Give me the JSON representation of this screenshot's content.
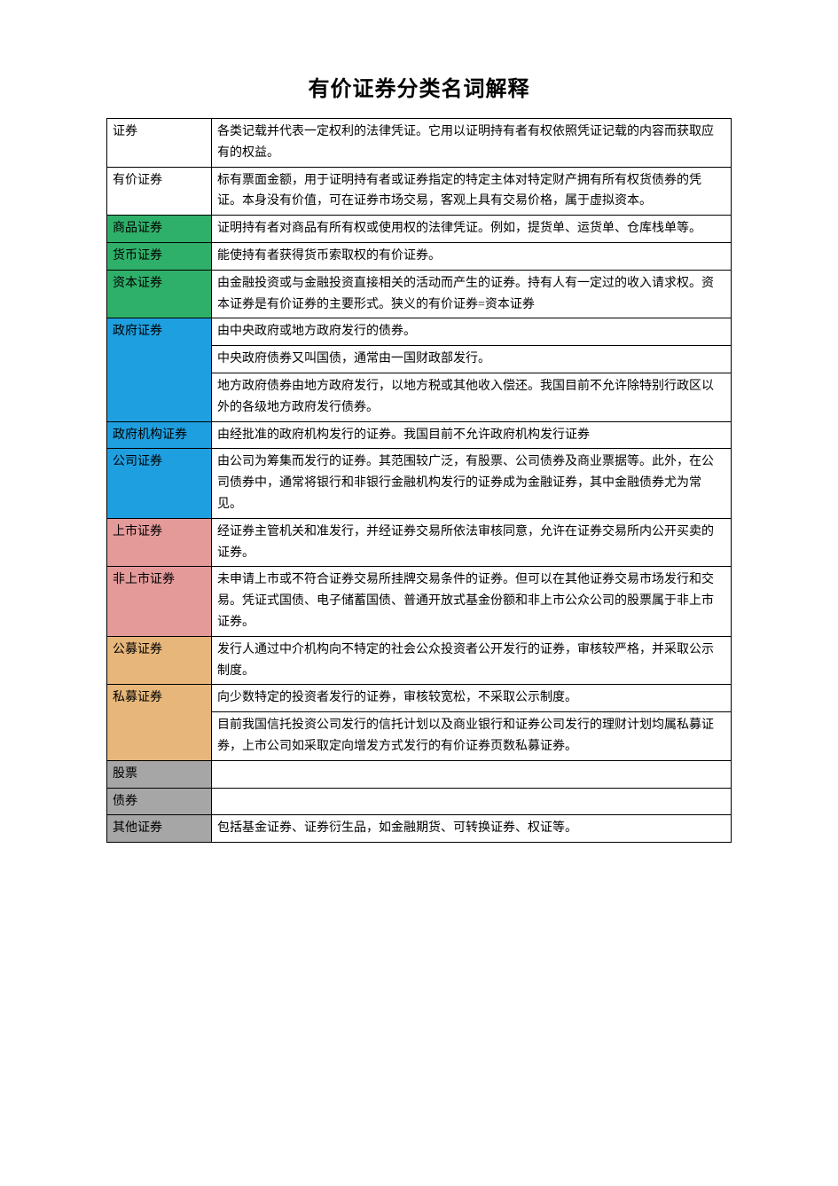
{
  "title": "有价证券分类名词解释",
  "table": {
    "columns": [
      "term",
      "definition"
    ],
    "col_widths": [
      "118px",
      "auto"
    ],
    "border_color": "#000000",
    "font_size": 14,
    "line_height": 1.7,
    "rows": [
      {
        "term": "证券",
        "term_bg": "#ffffff",
        "definition": "各类记载并代表一定权利的法律凭证。它用以证明持有者有权依照凭证记载的内容而获取应有的权益。"
      },
      {
        "term": "有价证券",
        "term_bg": "#ffffff",
        "definition": "标有票面金额，用于证明持有者或证券指定的特定主体对特定财产拥有所有权货债券的凭证。本身没有价值，可在证券市场交易，客观上具有交易价格，属于虚拟资本。"
      },
      {
        "term": "商品证券",
        "term_bg": "#2fb06a",
        "definition": "证明持有者对商品有所有权或使用权的法律凭证。例如，提货单、运货单、仓库栈单等。"
      },
      {
        "term": "货币证券",
        "term_bg": "#2fb06a",
        "definition": "能使持有者获得货币索取权的有价证券。"
      },
      {
        "term": "资本证券",
        "term_bg": "#2fb06a",
        "definition": "由金融投资或与金融投资直接相关的活动而产生的证券。持有人有一定过的收入请求权。资本证券是有价证券的主要形式。狭义的有价证券=资本证券"
      },
      {
        "term": "政府证券",
        "term_bg": "#1e9fe0",
        "term_rowspan": 3,
        "definition": "由中央政府或地方政府发行的债券。"
      },
      {
        "continuation": true,
        "definition": "中央政府债券又叫国债，通常由一国财政部发行。"
      },
      {
        "continuation": true,
        "definition": "地方政府债券由地方政府发行，以地方税或其他收入偿还。我国目前不允许除特别行政区以外的各级地方政府发行债券。"
      },
      {
        "term": "政府机构证券",
        "term_bg": "#1e9fe0",
        "definition": "由经批准的政府机构发行的证券。我国目前不允许政府机构发行证券"
      },
      {
        "term": "公司证券",
        "term_bg": "#1e9fe0",
        "definition": "由公司为筹集而发行的证券。其范围较广泛，有股票、公司债券及商业票据等。此外，在公司债券中，通常将银行和非银行金融机构发行的证券成为金融证券，其中金融债券尤为常见。"
      },
      {
        "term": "上市证券",
        "term_bg": "#e59a9a",
        "definition": "经证券主管机关和准发行，并经证券交易所依法审核同意，允许在证券交易所内公开买卖的证券。"
      },
      {
        "term": "非上市证券",
        "term_bg": "#e59a9a",
        "definition": "未申请上市或不符合证券交易所挂牌交易条件的证券。但可以在其他证券交易市场发行和交易。凭证式国债、电子储蓄国债、普通开放式基金份额和非上市公众公司的股票属于非上市证券。"
      },
      {
        "term": "公募证券",
        "term_bg": "#e6b67a",
        "definition": "发行人通过中介机构向不特定的社会公众投资者公开发行的证券，审核较严格，并采取公示制度。"
      },
      {
        "term": "私募证券",
        "term_bg": "#e6b67a",
        "term_rowspan": 2,
        "definition": "向少数特定的投资者发行的证券，审核较宽松，不采取公示制度。"
      },
      {
        "continuation": true,
        "definition": "目前我国信托投资公司发行的信托计划以及商业银行和证券公司发行的理财计划均属私募证券，上市公司如采取定向增发方式发行的有价证券页数私募证券。"
      },
      {
        "term": "股票",
        "term_bg": "#a6a6a6",
        "definition": ""
      },
      {
        "term": "债券",
        "term_bg": "#a6a6a6",
        "definition": ""
      },
      {
        "term": "其他证券",
        "term_bg": "#a6a6a6",
        "definition": "包括基金证券、证券衍生品，如金融期货、可转换证券、权证等。"
      }
    ]
  },
  "colors": {
    "green": "#2fb06a",
    "blue": "#1e9fe0",
    "pink": "#e59a9a",
    "orange": "#e6b67a",
    "gray": "#a6a6a6",
    "white": "#ffffff",
    "border": "#000000"
  }
}
